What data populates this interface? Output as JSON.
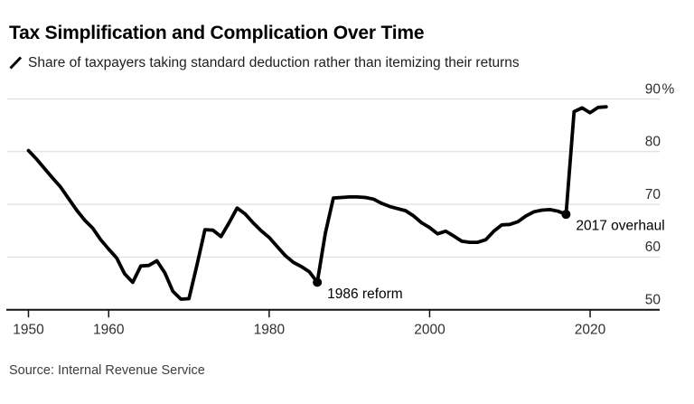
{
  "header": {
    "title": "Tax Simplification and Complication Over Time",
    "legend_label": "Share of taxpayers taking standard deduction rather than itemizing their returns"
  },
  "footer": {
    "source": "Source: Internal Revenue Service"
  },
  "chart_data": {
    "type": "line",
    "title": "Tax Simplification and Complication Over Time",
    "series_label": "Share of taxpayers taking standard deduction rather than itemizing their returns",
    "x_start": 1950,
    "x_end": 2022,
    "x_interval": 1,
    "values": [
      80.2,
      78.6,
      76.8,
      75.0,
      73.3,
      71.1,
      68.9,
      67.0,
      65.5,
      63.3,
      61.5,
      59.8,
      56.8,
      55.2,
      58.3,
      58.4,
      59.3,
      57.0,
      53.5,
      52.0,
      52.1,
      58.5,
      65.2,
      65.1,
      63.9,
      66.5,
      69.3,
      68.2,
      66.5,
      65.0,
      63.7,
      62.0,
      60.3,
      59.0,
      58.2,
      57.2,
      55.2,
      64.5,
      71.2,
      71.3,
      71.4,
      71.4,
      71.3,
      71.0,
      70.2,
      69.6,
      69.2,
      68.8,
      67.8,
      66.5,
      65.6,
      64.4,
      64.9,
      64.0,
      63.0,
      62.8,
      62.8,
      63.3,
      64.9,
      66.1,
      66.2,
      66.7,
      67.8,
      68.6,
      68.9,
      69.0,
      68.7,
      68.1,
      87.6,
      88.3,
      87.4,
      88.4,
      88.5
    ],
    "x_ticks": [
      1950,
      1960,
      1980,
      2000,
      2020
    ],
    "y_ticks": [
      {
        "value": 90,
        "label": "90",
        "suffix": "%"
      },
      {
        "value": 80,
        "label": "80",
        "suffix": ""
      },
      {
        "value": 70,
        "label": "70",
        "suffix": ""
      },
      {
        "value": 60,
        "label": "60",
        "suffix": ""
      },
      {
        "value": 50,
        "label": "50",
        "suffix": ""
      }
    ],
    "ylim": [
      50,
      90
    ],
    "grid": "horizontal-only",
    "legend_position": "none",
    "annotations": [
      {
        "year": 1986,
        "value": 55.2,
        "label": "1986 reform"
      },
      {
        "year": 2017,
        "value": 68.1,
        "label": "2017 overhaul"
      }
    ],
    "colors": {
      "line": "#000000",
      "grid": "#d8d8d8",
      "axis": "#111111",
      "tick_label": "#2f2f2f",
      "annotation": "#000000"
    }
  }
}
